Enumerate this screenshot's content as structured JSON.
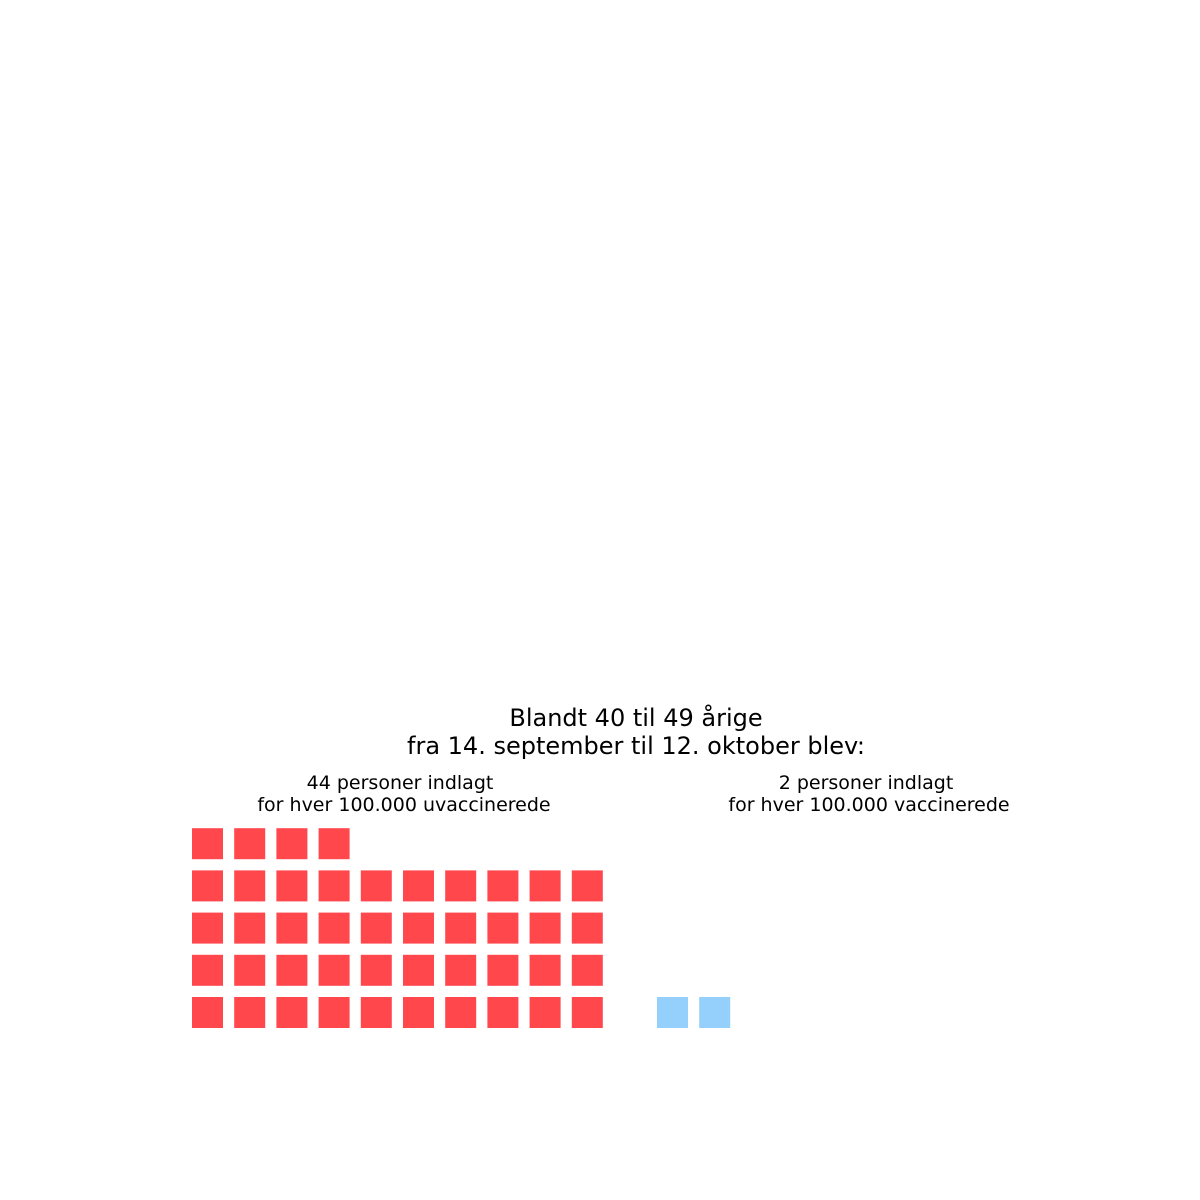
{
  "chart_data": {
    "type": "waffle",
    "title": "Blandt 40 til 49 årige",
    "subtitle": "fra 14. september til 12. oktober blev:",
    "series": [
      {
        "name": "uvaccinerede",
        "label_line1": "44 personer indlagt",
        "label_line2": "for hver 100.000 uvaccinerede",
        "value": 44,
        "color": "#ff474c"
      },
      {
        "name": "vaccinerede",
        "label_line1": "2 personer indlagt",
        "label_line2": "for hver 100.000 vaccinerede",
        "value": 2,
        "color": "#95d0fc"
      }
    ],
    "units_per_row": 10,
    "fill_order": "bottom-up, left-to-right",
    "legend": "none",
    "grid": false
  }
}
